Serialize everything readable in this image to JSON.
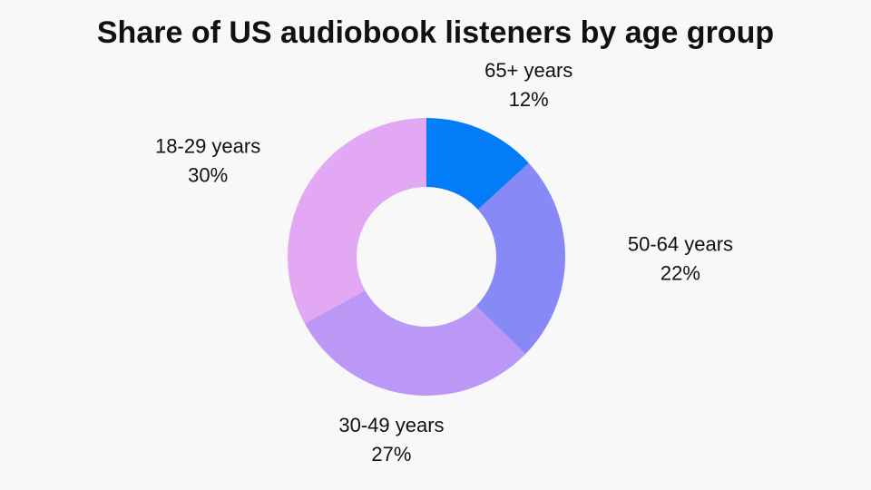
{
  "chart_data": {
    "type": "donut",
    "title": "Share of US audiobook listeners by age group",
    "categories": [
      "65+ years",
      "50-64 years",
      "30-49 years",
      "18-29 years"
    ],
    "values": [
      12,
      22,
      27,
      30
    ],
    "value_labels": [
      "12%",
      "22%",
      "27%",
      "30%"
    ],
    "colors": [
      "#027cf7",
      "#8789f7",
      "#bb98f5",
      "#e3a8f3"
    ]
  }
}
